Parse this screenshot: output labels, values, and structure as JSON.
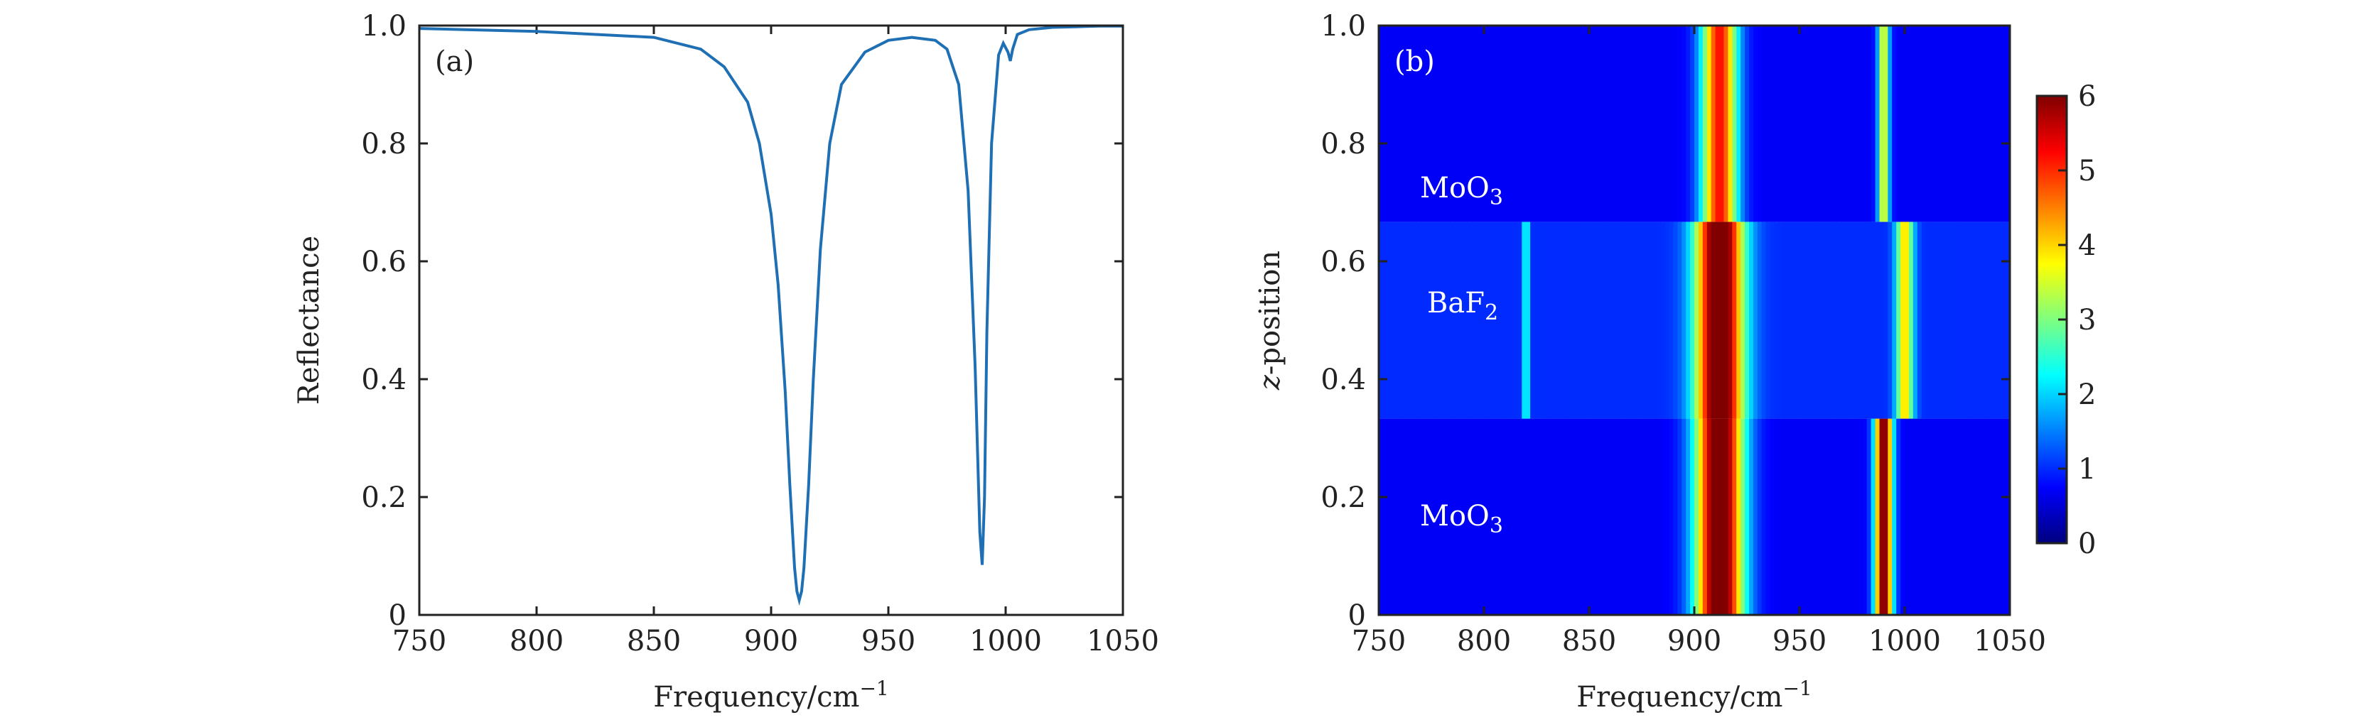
{
  "chart_data": [
    {
      "type": "line",
      "panel_label": "(a)",
      "xlabel": "Frequency/cm",
      "xlabel_sup": "−1",
      "ylabel": "Reflectance",
      "xlim": [
        750,
        1050
      ],
      "ylim": [
        0,
        1.0
      ],
      "x_ticks": [
        750,
        800,
        850,
        900,
        950,
        1000,
        1050
      ],
      "x_tick_labels": [
        "750",
        "800",
        "850",
        "900",
        "950",
        "1000",
        "1050"
      ],
      "y_ticks": [
        0,
        0.2,
        0.4,
        0.6,
        0.8,
        1.0
      ],
      "y_tick_labels": [
        "0",
        "0.2",
        "0.4",
        "0.6",
        "0.8",
        "1.0"
      ],
      "line_color": "#1f6fb4",
      "series": [
        {
          "x": [
            750,
            800,
            850,
            870,
            880,
            890,
            895,
            900,
            903,
            906,
            908,
            910,
            911,
            912,
            913,
            914,
            916,
            918,
            921,
            925,
            930,
            940,
            950,
            960,
            970,
            975,
            980,
            984,
            987,
            989,
            990,
            991,
            992,
            994,
            997,
            999,
            1001,
            1002,
            1003,
            1005,
            1010,
            1020,
            1030,
            1040,
            1050
          ],
          "y": [
            0.995,
            0.99,
            0.98,
            0.96,
            0.93,
            0.87,
            0.8,
            0.68,
            0.56,
            0.38,
            0.22,
            0.08,
            0.04,
            0.025,
            0.04,
            0.08,
            0.22,
            0.4,
            0.62,
            0.8,
            0.9,
            0.955,
            0.975,
            0.98,
            0.975,
            0.96,
            0.9,
            0.72,
            0.42,
            0.14,
            0.085,
            0.2,
            0.48,
            0.8,
            0.95,
            0.97,
            0.955,
            0.94,
            0.96,
            0.985,
            0.993,
            0.997,
            0.998,
            0.999,
            0.999
          ]
        }
      ]
    },
    {
      "type": "heatmap",
      "panel_label": "(b)",
      "xlabel": "Frequency/cm",
      "xlabel_sup": "−1",
      "ylabel": "-position",
      "ylabel_italic_prefix": "z",
      "xlim": [
        750,
        1050
      ],
      "ylim": [
        0,
        1.0
      ],
      "x_ticks": [
        750,
        800,
        850,
        900,
        950,
        1000,
        1050
      ],
      "x_tick_labels": [
        "750",
        "800",
        "850",
        "900",
        "950",
        "1000",
        "1050"
      ],
      "y_ticks": [
        0,
        0.2,
        0.4,
        0.6,
        0.8,
        1.0
      ],
      "y_tick_labels": [
        "0",
        "0.2",
        "0.4",
        "0.6",
        "0.8",
        "1.0"
      ],
      "colorbar": {
        "range": [
          0,
          6
        ],
        "ticks": [
          0,
          1,
          2,
          3,
          4,
          5,
          6
        ],
        "tick_labels": [
          "0",
          "1",
          "2",
          "3",
          "4",
          "5",
          "6"
        ],
        "colormap": "jet"
      },
      "layers": [
        {
          "name": "MoO",
          "sub": "3",
          "z_range": [
            0,
            0.333
          ]
        },
        {
          "name": "BaF",
          "sub": "2",
          "z_range": [
            0.333,
            0.667
          ]
        },
        {
          "name": "MoO",
          "sub": "3",
          "z_range": [
            0.667,
            1.0
          ]
        }
      ],
      "field_bands": [
        {
          "layer": 0,
          "freq_center": 912,
          "width": 8,
          "peak": 6.0
        },
        {
          "layer": 0,
          "freq_center": 990,
          "width": 3,
          "peak": 5.5
        },
        {
          "layer": 1,
          "freq_center": 912,
          "width": 8,
          "peak": 5.8
        },
        {
          "layer": 1,
          "freq_center": 820,
          "width": 1,
          "peak": 1.8
        },
        {
          "layer": 1,
          "freq_center": 1000,
          "width": 3,
          "peak": 3.0
        },
        {
          "layer": 2,
          "freq_center": 912,
          "width": 6,
          "peak": 4.5
        },
        {
          "layer": 2,
          "freq_center": 990,
          "width": 2,
          "peak": 3.0
        }
      ]
    }
  ]
}
